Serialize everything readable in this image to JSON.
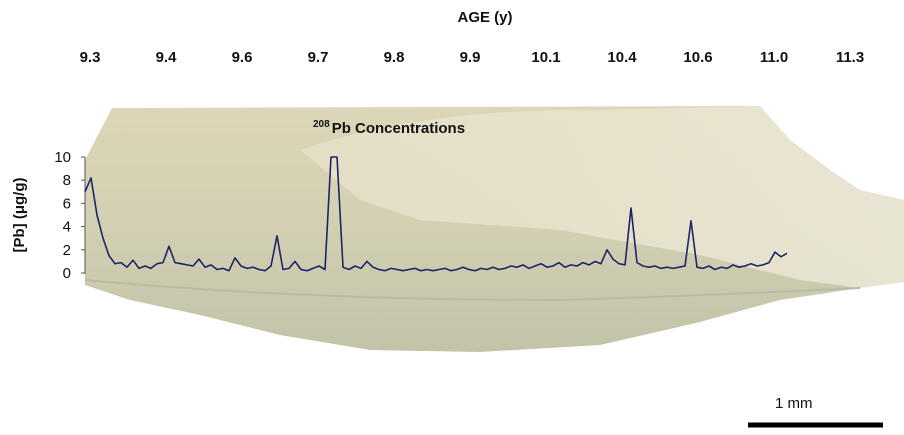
{
  "chart_data": {
    "type": "line",
    "top_axis_title": "AGE (y)",
    "top_axis_labels": [
      "9.3",
      "9.4",
      "9.6",
      "9.7",
      "9.8",
      "9.9",
      "10.1",
      "10.4",
      "10.6",
      "11.0",
      "11.3"
    ],
    "annotation_superscript": "208",
    "annotation": "Pb Concentrations",
    "y_label": "[Pb] (μg/g)",
    "scale_bar_label": "1 mm",
    "ylim": [
      0,
      10
    ],
    "yticks": [
      0,
      2,
      4,
      6,
      8,
      10
    ],
    "series": [
      {
        "name": "208Pb",
        "color": "#1c2566",
        "values": [
          7.0,
          8.2,
          5.0,
          3.0,
          1.5,
          0.8,
          0.9,
          0.5,
          1.1,
          0.4,
          0.6,
          0.4,
          0.8,
          0.9,
          2.3,
          0.9,
          0.8,
          0.7,
          0.6,
          1.2,
          0.5,
          0.7,
          0.3,
          0.4,
          0.2,
          1.3,
          0.6,
          0.4,
          0.5,
          0.3,
          0.2,
          0.6,
          3.2,
          0.3,
          0.4,
          1.0,
          0.3,
          0.2,
          0.4,
          0.6,
          0.3,
          10,
          10,
          0.5,
          0.3,
          0.6,
          0.4,
          1.0,
          0.5,
          0.3,
          0.2,
          0.4,
          0.3,
          0.2,
          0.3,
          0.4,
          0.2,
          0.3,
          0.2,
          0.3,
          0.4,
          0.2,
          0.3,
          0.5,
          0.3,
          0.2,
          0.4,
          0.3,
          0.5,
          0.3,
          0.4,
          0.6,
          0.5,
          0.7,
          0.4,
          0.6,
          0.8,
          0.5,
          0.6,
          0.9,
          0.5,
          0.7,
          0.6,
          0.9,
          0.7,
          1.0,
          0.8,
          2.0,
          1.2,
          0.8,
          0.7,
          5.6,
          0.9,
          0.6,
          0.5,
          0.6,
          0.4,
          0.5,
          0.4,
          0.5,
          0.6,
          4.5,
          0.5,
          0.4,
          0.6,
          0.3,
          0.5,
          0.4,
          0.7,
          0.5,
          0.6,
          0.8,
          0.6,
          0.7,
          0.9,
          1.8,
          1.4,
          1.7
        ]
      }
    ]
  }
}
